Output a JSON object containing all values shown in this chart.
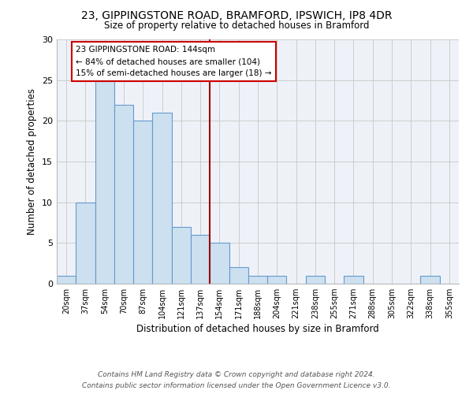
{
  "title1": "23, GIPPINGSTONE ROAD, BRAMFORD, IPSWICH, IP8 4DR",
  "title2": "Size of property relative to detached houses in Bramford",
  "xlabel": "Distribution of detached houses by size in Bramford",
  "ylabel": "Number of detached properties",
  "bin_labels": [
    "20sqm",
    "37sqm",
    "54sqm",
    "70sqm",
    "87sqm",
    "104sqm",
    "121sqm",
    "137sqm",
    "154sqm",
    "171sqm",
    "188sqm",
    "204sqm",
    "221sqm",
    "238sqm",
    "255sqm",
    "271sqm",
    "288sqm",
    "305sqm",
    "322sqm",
    "338sqm",
    "355sqm"
  ],
  "bar_heights": [
    1,
    10,
    25,
    22,
    20,
    21,
    7,
    6,
    5,
    2,
    1,
    1,
    0,
    1,
    0,
    1,
    0,
    0,
    0,
    1,
    0
  ],
  "bar_color": "#cce0f0",
  "bar_edge_color": "#6699cc",
  "vline_color": "#990000",
  "annotation_text": "23 GIPPINGSTONE ROAD: 144sqm\n← 84% of detached houses are smaller (104)\n15% of semi-detached houses are larger (18) →",
  "annotation_box_color": "#ffffff",
  "annotation_box_edge_color": "#cc0000",
  "ylim": [
    0,
    30
  ],
  "yticks": [
    0,
    5,
    10,
    15,
    20,
    25,
    30
  ],
  "footer1": "Contains HM Land Registry data © Crown copyright and database right 2024.",
  "footer2": "Contains public sector information licensed under the Open Government Licence v3.0.",
  "background_color": "#eef2f8",
  "grid_color": "#cccccc"
}
